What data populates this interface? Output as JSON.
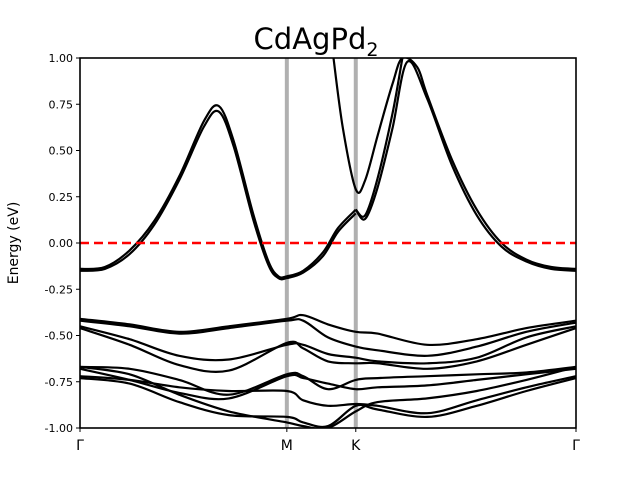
{
  "chart_data": {
    "type": "line",
    "title": "CdAgPd",
    "title_subscript": "2",
    "ylabel": "Energy (eV)",
    "xlabel": "",
    "ylim": [
      -1.0,
      1.0
    ],
    "yticks": [
      "-1.00",
      "-0.75",
      "-0.50",
      "-0.25",
      "0.00",
      "0.25",
      "0.50",
      "0.75",
      "1.00"
    ],
    "ytick_values": [
      -1.0,
      -0.75,
      -0.5,
      -0.25,
      0.0,
      0.25,
      0.5,
      0.75,
      1.0
    ],
    "xlim": [
      0,
      1
    ],
    "kpoints": [
      {
        "label": "Γ",
        "x": 0.0
      },
      {
        "label": "M",
        "x": 0.417
      },
      {
        "label": "K",
        "x": 0.556
      },
      {
        "label": "Γ",
        "x": 1.0
      }
    ],
    "fermi_level": 0.0,
    "colors": {
      "bands": "#000000",
      "fermi": "#ff0000",
      "kline": "#b0b0b0"
    },
    "grid": false,
    "series": [
      {
        "x": [
          0.0,
          0.05,
          0.1,
          0.15,
          0.2,
          0.25,
          0.28,
          0.31,
          0.35,
          0.38,
          0.4,
          0.417,
          0.45,
          0.49,
          0.52,
          0.556
        ],
        "y": [
          -0.14,
          -0.13,
          -0.04,
          0.12,
          0.36,
          0.66,
          0.74,
          0.55,
          0.15,
          -0.1,
          -0.18,
          -0.18,
          -0.15,
          -0.05,
          0.08,
          0.18
        ]
      },
      {
        "x": [
          0.0,
          0.05,
          0.1,
          0.15,
          0.2,
          0.25,
          0.28,
          0.31,
          0.35,
          0.38,
          0.4,
          0.417,
          0.45,
          0.49,
          0.52,
          0.556
        ],
        "y": [
          -0.15,
          -0.14,
          -0.06,
          0.1,
          0.34,
          0.63,
          0.71,
          0.52,
          0.12,
          -0.12,
          -0.19,
          -0.19,
          -0.16,
          -0.07,
          0.06,
          0.16
        ]
      },
      {
        "x": [
          0.511,
          0.53,
          0.556,
          0.575,
          0.6,
          0.63,
          0.65,
          0.68,
          0.7,
          0.75,
          0.8,
          0.85,
          0.9,
          0.95,
          1.0
        ],
        "y": [
          1.0,
          0.62,
          0.29,
          0.34,
          0.58,
          0.86,
          1.0,
          0.95,
          0.8,
          0.45,
          0.18,
          0.0,
          -0.09,
          -0.13,
          -0.14
        ]
      },
      {
        "x": [
          0.556,
          0.575,
          0.6,
          0.63,
          0.66,
          0.7,
          0.75,
          0.8,
          0.85,
          0.9,
          0.95,
          1.0
        ],
        "y": [
          0.18,
          0.13,
          0.3,
          0.62,
          0.98,
          0.78,
          0.42,
          0.15,
          -0.02,
          -0.1,
          -0.14,
          -0.15
        ]
      },
      {
        "x": [
          0.556,
          0.575,
          0.6,
          0.63,
          0.65
        ],
        "y": [
          0.18,
          0.15,
          0.35,
          0.7,
          1.0
        ]
      },
      {
        "x": [
          0.0,
          0.1,
          0.2,
          0.3,
          0.417,
          0.45,
          0.5,
          0.556,
          0.6,
          0.7,
          0.8,
          0.9,
          1.0
        ],
        "y": [
          -0.41,
          -0.44,
          -0.48,
          -0.45,
          -0.41,
          -0.39,
          -0.44,
          -0.48,
          -0.49,
          -0.55,
          -0.52,
          -0.46,
          -0.42
        ]
      },
      {
        "x": [
          0.0,
          0.1,
          0.2,
          0.3,
          0.417,
          0.45,
          0.5,
          0.556,
          0.6,
          0.7,
          0.8,
          0.9,
          1.0
        ],
        "y": [
          -0.42,
          -0.45,
          -0.49,
          -0.46,
          -0.42,
          -0.42,
          -0.51,
          -0.56,
          -0.58,
          -0.61,
          -0.56,
          -0.48,
          -0.43
        ]
      },
      {
        "x": [
          0.0,
          0.1,
          0.2,
          0.3,
          0.417,
          0.45,
          0.5,
          0.556,
          0.6,
          0.7,
          0.8,
          0.9,
          1.0
        ],
        "y": [
          -0.45,
          -0.52,
          -0.61,
          -0.63,
          -0.55,
          -0.55,
          -0.6,
          -0.62,
          -0.64,
          -0.65,
          -0.62,
          -0.51,
          -0.45
        ]
      },
      {
        "x": [
          0.0,
          0.1,
          0.2,
          0.3,
          0.417,
          0.45,
          0.5,
          0.556,
          0.6,
          0.7,
          0.8,
          0.9,
          1.0
        ],
        "y": [
          -0.46,
          -0.55,
          -0.66,
          -0.69,
          -0.54,
          -0.57,
          -0.64,
          -0.65,
          -0.65,
          -0.68,
          -0.64,
          -0.55,
          -0.46
        ]
      },
      {
        "x": [
          0.0,
          0.1,
          0.2,
          0.3,
          0.417,
          0.45,
          0.5,
          0.556,
          0.6,
          0.7,
          0.8,
          0.9,
          1.0
        ],
        "y": [
          -0.67,
          -0.68,
          -0.74,
          -0.82,
          -0.71,
          -0.72,
          -0.79,
          -0.74,
          -0.73,
          -0.72,
          -0.71,
          -0.7,
          -0.67
        ]
      },
      {
        "x": [
          0.0,
          0.1,
          0.2,
          0.3,
          0.417,
          0.45,
          0.5,
          0.556,
          0.6,
          0.7,
          0.8,
          0.9,
          1.0
        ],
        "y": [
          -0.68,
          -0.74,
          -0.81,
          -0.84,
          -0.72,
          -0.73,
          -0.76,
          -0.79,
          -0.78,
          -0.77,
          -0.74,
          -0.71,
          -0.68
        ]
      },
      {
        "x": [
          0.0,
          0.1,
          0.2,
          0.3,
          0.417,
          0.45,
          0.5,
          0.556,
          0.6,
          0.7,
          0.8,
          0.9,
          1.0
        ],
        "y": [
          -0.72,
          -0.74,
          -0.78,
          -0.8,
          -0.8,
          -0.85,
          -0.88,
          -0.87,
          -0.88,
          -0.92,
          -0.85,
          -0.78,
          -0.72
        ]
      },
      {
        "x": [
          0.0,
          0.1,
          0.2,
          0.3,
          0.417,
          0.45,
          0.5,
          0.556,
          0.6,
          0.7,
          0.8,
          0.9,
          1.0
        ],
        "y": [
          -0.73,
          -0.76,
          -0.86,
          -0.93,
          -0.94,
          -0.97,
          -0.99,
          -0.88,
          -0.9,
          -0.94,
          -0.88,
          -0.8,
          -0.73
        ]
      },
      {
        "x": [
          0.0,
          0.1,
          0.2,
          0.3,
          0.417,
          0.45,
          0.5,
          0.556,
          0.6,
          0.7,
          0.8,
          0.9,
          1.0
        ],
        "y": [
          -0.67,
          -0.71,
          -0.82,
          -0.91,
          -0.97,
          -0.99,
          -1.0,
          -0.91,
          -0.86,
          -0.84,
          -0.8,
          -0.74,
          -0.67
        ]
      }
    ]
  }
}
